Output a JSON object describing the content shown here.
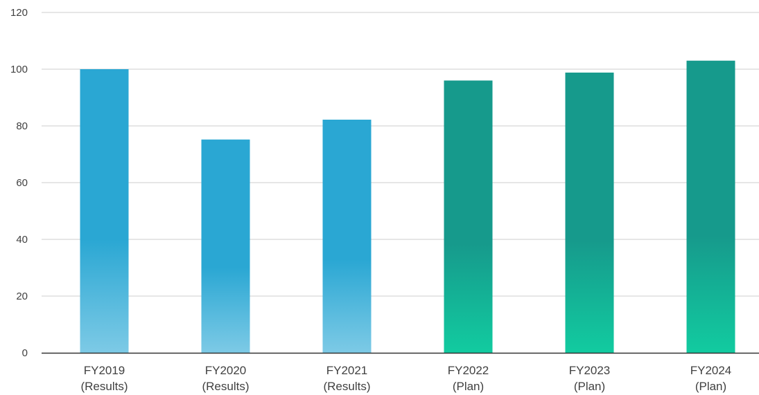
{
  "chart_data": {
    "type": "bar",
    "title": "",
    "xlabel": "",
    "ylabel": "",
    "ylim": [
      0,
      120
    ],
    "yticks": [
      0,
      20,
      40,
      60,
      80,
      100,
      120
    ],
    "yticks_labels": [
      "0",
      "20",
      "40",
      "60",
      "80",
      "100",
      "120"
    ],
    "grid": true,
    "legend": "none",
    "categories": [
      [
        "FY2019",
        "(Results)"
      ],
      [
        "FY2020",
        "(Results)"
      ],
      [
        "FY2021",
        "(Results)"
      ],
      [
        "FY2022",
        "(Plan)"
      ],
      [
        "FY2023",
        "(Plan)"
      ],
      [
        "FY2024",
        "(Plan)"
      ]
    ],
    "values": [
      100,
      75.2,
      82.2,
      96,
      98.8,
      103
    ],
    "bar_kind": [
      "results",
      "results",
      "results",
      "plan",
      "plan",
      "plan"
    ]
  },
  "colors": {
    "results_top": "#2aa7d3",
    "results_bottom": "#7dcae6",
    "plan_top": "#169a8c",
    "plan_bottom": "#12cba0",
    "grid": "#cccccc",
    "axis": "#333333",
    "text": "#404040"
  }
}
